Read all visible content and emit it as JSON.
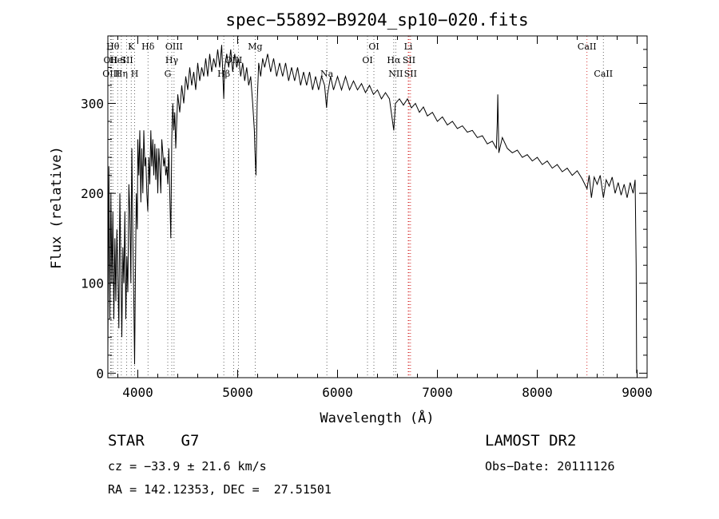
{
  "chart_data": {
    "type": "line",
    "title": "spec−55892−B9204_sp10−020.fits",
    "xlabel": "Wavelength (Å)",
    "ylabel": "Flux (relative)",
    "xlim": [
      3700,
      9100
    ],
    "ylim": [
      -5,
      375
    ],
    "xticks": [
      4000,
      5000,
      6000,
      7000,
      8000,
      9000
    ],
    "yticks": [
      0,
      100,
      200,
      300
    ],
    "grid": false,
    "series": [
      {
        "points": [
          [
            3700,
            20
          ],
          [
            3710,
            230
          ],
          [
            3720,
            60
          ],
          [
            3730,
            200
          ],
          [
            3740,
            100
          ],
          [
            3750,
            180
          ],
          [
            3760,
            60
          ],
          [
            3770,
            150
          ],
          [
            3780,
            80
          ],
          [
            3790,
            160
          ],
          [
            3800,
            110
          ],
          [
            3810,
            50
          ],
          [
            3820,
            200
          ],
          [
            3830,
            120
          ],
          [
            3840,
            40
          ],
          [
            3850,
            140
          ],
          [
            3860,
            100
          ],
          [
            3870,
            180
          ],
          [
            3880,
            60
          ],
          [
            3890,
            130
          ],
          [
            3900,
            90
          ],
          [
            3910,
            210
          ],
          [
            3920,
            180
          ],
          [
            3930,
            100
          ],
          [
            3940,
            250
          ],
          [
            3950,
            150
          ],
          [
            3960,
            80
          ],
          [
            3968,
            10
          ],
          [
            3975,
            100
          ],
          [
            3985,
            200
          ],
          [
            3995,
            160
          ],
          [
            4000,
            260
          ],
          [
            4010,
            220
          ],
          [
            4020,
            270
          ],
          [
            4030,
            190
          ],
          [
            4040,
            250
          ],
          [
            4050,
            200
          ],
          [
            4060,
            270
          ],
          [
            4070,
            230
          ],
          [
            4080,
            240
          ],
          [
            4090,
            200
          ],
          [
            4100,
            180
          ],
          [
            4110,
            240
          ],
          [
            4120,
            210
          ],
          [
            4130,
            270
          ],
          [
            4140,
            230
          ],
          [
            4150,
            260
          ],
          [
            4160,
            220
          ],
          [
            4170,
            255
          ],
          [
            4180,
            215
          ],
          [
            4190,
            250
          ],
          [
            4200,
            200
          ],
          [
            4210,
            250
          ],
          [
            4220,
            230
          ],
          [
            4230,
            200
          ],
          [
            4240,
            260
          ],
          [
            4250,
            245
          ],
          [
            4260,
            230
          ],
          [
            4270,
            240
          ],
          [
            4280,
            220
          ],
          [
            4290,
            230
          ],
          [
            4300,
            210
          ],
          [
            4310,
            250
          ],
          [
            4320,
            200
          ],
          [
            4330,
            150
          ],
          [
            4340,
            260
          ],
          [
            4350,
            300
          ],
          [
            4360,
            270
          ],
          [
            4370,
            290
          ],
          [
            4380,
            250
          ],
          [
            4400,
            310
          ],
          [
            4420,
            290
          ],
          [
            4440,
            320
          ],
          [
            4460,
            300
          ],
          [
            4480,
            330
          ],
          [
            4500,
            315
          ],
          [
            4520,
            340
          ],
          [
            4540,
            320
          ],
          [
            4560,
            335
          ],
          [
            4580,
            315
          ],
          [
            4600,
            345
          ],
          [
            4620,
            325
          ],
          [
            4640,
            340
          ],
          [
            4660,
            330
          ],
          [
            4680,
            350
          ],
          [
            4700,
            330
          ],
          [
            4720,
            355
          ],
          [
            4740,
            335
          ],
          [
            4760,
            350
          ],
          [
            4780,
            340
          ],
          [
            4800,
            360
          ],
          [
            4820,
            340
          ],
          [
            4840,
            365
          ],
          [
            4861,
            305
          ],
          [
            4870,
            340
          ],
          [
            4890,
            355
          ],
          [
            4910,
            340
          ],
          [
            4930,
            360
          ],
          [
            4950,
            335
          ],
          [
            4970,
            355
          ],
          [
            4990,
            340
          ],
          [
            5010,
            350
          ],
          [
            5030,
            330
          ],
          [
            5050,
            345
          ],
          [
            5070,
            325
          ],
          [
            5090,
            340
          ],
          [
            5110,
            320
          ],
          [
            5130,
            330
          ],
          [
            5150,
            300
          ],
          [
            5167,
            270
          ],
          [
            5172,
            250
          ],
          [
            5183,
            220
          ],
          [
            5195,
            300
          ],
          [
            5210,
            345
          ],
          [
            5230,
            330
          ],
          [
            5250,
            350
          ],
          [
            5270,
            340
          ],
          [
            5300,
            355
          ],
          [
            5330,
            335
          ],
          [
            5360,
            350
          ],
          [
            5390,
            330
          ],
          [
            5420,
            345
          ],
          [
            5450,
            330
          ],
          [
            5480,
            345
          ],
          [
            5510,
            325
          ],
          [
            5540,
            340
          ],
          [
            5570,
            325
          ],
          [
            5600,
            340
          ],
          [
            5630,
            320
          ],
          [
            5660,
            335
          ],
          [
            5690,
            320
          ],
          [
            5720,
            335
          ],
          [
            5750,
            315
          ],
          [
            5780,
            330
          ],
          [
            5810,
            315
          ],
          [
            5840,
            330
          ],
          [
            5870,
            320
          ],
          [
            5890,
            295
          ],
          [
            5900,
            310
          ],
          [
            5930,
            330
          ],
          [
            5960,
            315
          ],
          [
            6000,
            330
          ],
          [
            6040,
            315
          ],
          [
            6080,
            330
          ],
          [
            6120,
            315
          ],
          [
            6160,
            325
          ],
          [
            6200,
            315
          ],
          [
            6240,
            322
          ],
          [
            6280,
            312
          ],
          [
            6320,
            320
          ],
          [
            6360,
            310
          ],
          [
            6400,
            315
          ],
          [
            6440,
            305
          ],
          [
            6480,
            312
          ],
          [
            6520,
            305
          ],
          [
            6563,
            270
          ],
          [
            6580,
            300
          ],
          [
            6620,
            305
          ],
          [
            6660,
            298
          ],
          [
            6700,
            305
          ],
          [
            6740,
            295
          ],
          [
            6780,
            300
          ],
          [
            6820,
            290
          ],
          [
            6860,
            296
          ],
          [
            6900,
            286
          ],
          [
            6950,
            290
          ],
          [
            7000,
            280
          ],
          [
            7050,
            285
          ],
          [
            7100,
            276
          ],
          [
            7150,
            280
          ],
          [
            7200,
            272
          ],
          [
            7250,
            275
          ],
          [
            7300,
            268
          ],
          [
            7350,
            270
          ],
          [
            7400,
            262
          ],
          [
            7450,
            264
          ],
          [
            7500,
            255
          ],
          [
            7550,
            258
          ],
          [
            7590,
            250
          ],
          [
            7600,
            280
          ],
          [
            7605,
            310
          ],
          [
            7615,
            245
          ],
          [
            7650,
            262
          ],
          [
            7700,
            250
          ],
          [
            7750,
            245
          ],
          [
            7800,
            248
          ],
          [
            7850,
            240
          ],
          [
            7900,
            243
          ],
          [
            7950,
            236
          ],
          [
            8000,
            240
          ],
          [
            8050,
            232
          ],
          [
            8100,
            236
          ],
          [
            8150,
            228
          ],
          [
            8200,
            232
          ],
          [
            8250,
            224
          ],
          [
            8300,
            228
          ],
          [
            8350,
            220
          ],
          [
            8400,
            225
          ],
          [
            8450,
            216
          ],
          [
            8498,
            205
          ],
          [
            8520,
            220
          ],
          [
            8542,
            195
          ],
          [
            8570,
            218
          ],
          [
            8600,
            210
          ],
          [
            8630,
            220
          ],
          [
            8662,
            195
          ],
          [
            8690,
            215
          ],
          [
            8720,
            208
          ],
          [
            8750,
            218
          ],
          [
            8780,
            200
          ],
          [
            8810,
            212
          ],
          [
            8840,
            198
          ],
          [
            8870,
            210
          ],
          [
            8900,
            195
          ],
          [
            8930,
            212
          ],
          [
            8960,
            200
          ],
          [
            8980,
            215
          ],
          [
            8990,
            120
          ],
          [
            8995,
            0
          ]
        ]
      }
    ],
    "line_markers": [
      {
        "wavelength": 3727,
        "label": "OII",
        "row": 2,
        "dash": "#444444"
      },
      {
        "wavelength": 3734,
        "label": "OIII",
        "row": 3,
        "dash": "#444444"
      },
      {
        "wavelength": 3750,
        "label": "Hθ",
        "row": 1,
        "dash": "#444444"
      },
      {
        "wavelength": 3798,
        "label": "HeI",
        "row": 2,
        "dash": "#444444"
      },
      {
        "wavelength": 3835,
        "label": "Hη",
        "row": 3,
        "dash": "#444444"
      },
      {
        "wavelength": 3889,
        "label": "SII",
        "row": 2,
        "dash": "#444444"
      },
      {
        "wavelength": 3934,
        "label": "K",
        "row": 1,
        "dash": "#444444"
      },
      {
        "wavelength": 3968,
        "label": "H",
        "row": 3,
        "dash": "#444444"
      },
      {
        "wavelength": 4102,
        "label": "Hδ",
        "row": 1,
        "dash": "#444444"
      },
      {
        "wavelength": 4300,
        "label": "G",
        "row": 3,
        "dash": "#444444"
      },
      {
        "wavelength": 4340,
        "label": "Hγ",
        "row": 2,
        "dash": "#444444"
      },
      {
        "wavelength": 4363,
        "label": "OIII",
        "row": 1,
        "dash": "#444444"
      },
      {
        "wavelength": 4861,
        "label": "Hβ",
        "row": 3,
        "dash": "#444444"
      },
      {
        "wavelength": 4959,
        "label": "OIII",
        "row": 2,
        "dash": "#444444"
      },
      {
        "wavelength": 5007,
        "label": "",
        "row": 2,
        "dash": "#444444"
      },
      {
        "wavelength": 5175,
        "label": "Mg",
        "row": 1,
        "dash": "#444444"
      },
      {
        "wavelength": 5893,
        "label": "Na",
        "row": 3,
        "dash": "#444444"
      },
      {
        "wavelength": 6300,
        "label": "OI",
        "row": 2,
        "dash": "#444444"
      },
      {
        "wavelength": 6364,
        "label": "OI",
        "row": 1,
        "dash": "#444444"
      },
      {
        "wavelength": 6563,
        "label": "Hα",
        "row": 2,
        "dash": "#444444"
      },
      {
        "wavelength": 6583,
        "label": "NII",
        "row": 3,
        "dash": "#444444"
      },
      {
        "wavelength": 6708,
        "label": "Li",
        "row": 1,
        "dash": "#cc0000"
      },
      {
        "wavelength": 6716,
        "label": "SII",
        "row": 2,
        "dash": "#cc0000"
      },
      {
        "wavelength": 6731,
        "label": "SII",
        "row": 3,
        "dash": "#cc0000"
      },
      {
        "wavelength": 8498,
        "label": "CaII",
        "row": 1,
        "dash": "#cc0000"
      },
      {
        "wavelength": 8662,
        "label": "CaII",
        "row": 3,
        "dash": "#444444"
      }
    ]
  },
  "info": {
    "object": "STAR    G7",
    "survey": "LAMOST DR2",
    "velocity": "cz = −33.9 ± 21.6 km/s",
    "obs_date": "Obs−Date: 20111126",
    "coords": "RA = 142.12353, DEC =  27.51501"
  }
}
